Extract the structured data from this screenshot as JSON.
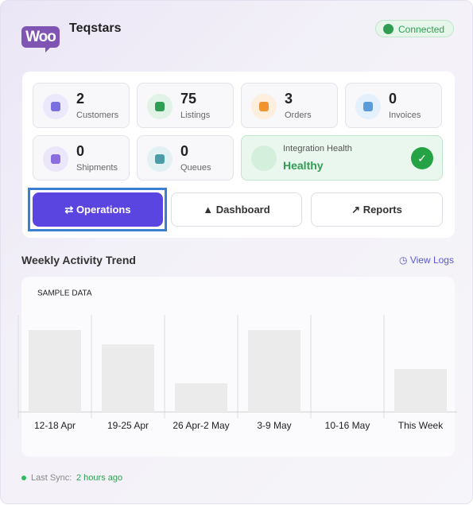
{
  "header": {
    "logo": "Woo",
    "brand": "Teqstars",
    "status": "Connected"
  },
  "stats": [
    {
      "value": 2,
      "label": "Customers"
    },
    {
      "value": 75,
      "label": "Listings"
    },
    {
      "value": 3,
      "label": "Orders"
    },
    {
      "value": 0,
      "label": "Invoices"
    },
    {
      "value": 0,
      "label": "Shipments"
    },
    {
      "value": 0,
      "label": "Queues"
    }
  ],
  "health": {
    "label": "Integration Health",
    "status": "Healthy"
  },
  "buttons": [
    "Operations",
    "Dashboard",
    "Reports"
  ],
  "section": {
    "title": "Weekly Activity Trend",
    "link": "View Logs"
  },
  "chart_data": {
    "type": "bar",
    "subtitle": "SAMPLE DATA",
    "categories": [
      "12-18 Apr",
      "19-25 Apr",
      "26 Apr-2 May",
      "3-9 May",
      "10-16 May",
      "This Week"
    ],
    "values": [
      103,
      85,
      36,
      103,
      0,
      54
    ],
    "color": "#ebebeb",
    "ylim": [
      0,
      122
    ],
    "grid": true
  },
  "footer": {
    "label": "Last Sync:",
    "value": "2 hours ago"
  }
}
